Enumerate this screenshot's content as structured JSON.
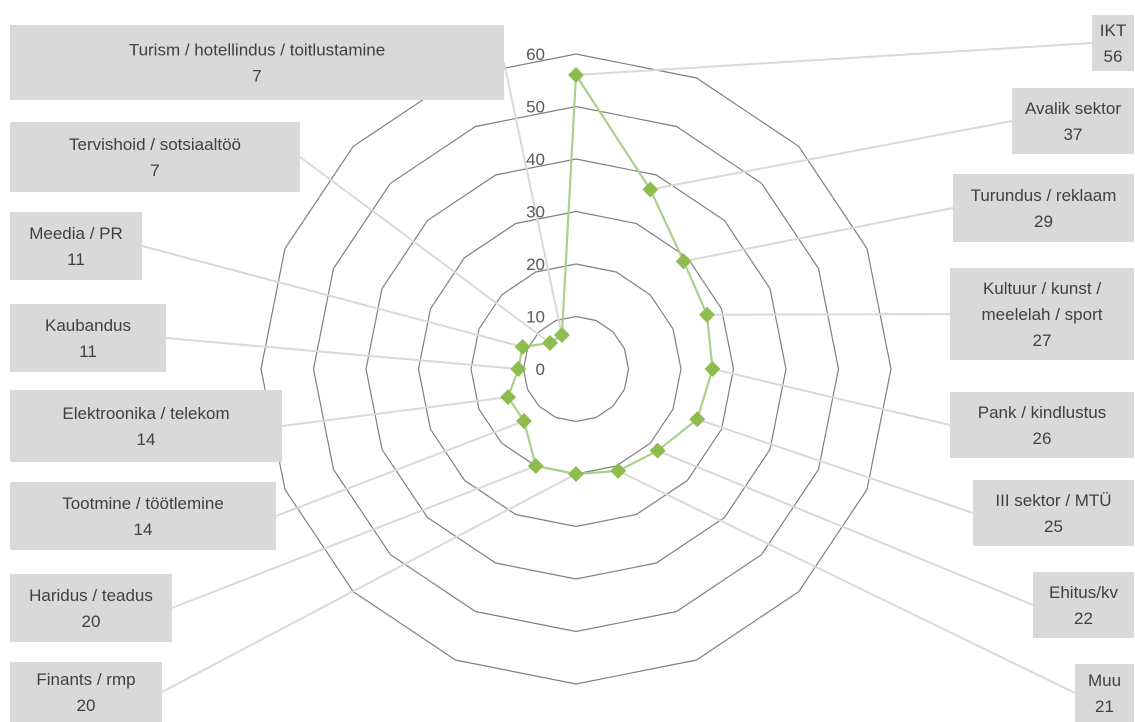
{
  "colors": {
    "series": "#8fbc4f",
    "series_line": "#a9d08e",
    "grid": "#808080",
    "callout_fill": "#d9d9d9",
    "leader": "#d9d9d9",
    "tick_text": "#595959",
    "label_text": "#404040"
  },
  "chart_data": {
    "type": "radar",
    "title": "",
    "rlim": [
      0,
      60
    ],
    "ticks": [
      "0",
      "10",
      "20",
      "30",
      "40",
      "50",
      "60"
    ],
    "tick_values": [
      0,
      10,
      20,
      30,
      40,
      50,
      60
    ],
    "grid": true,
    "marker": "diamond",
    "categories": [
      "IKT",
      "Avalik sektor",
      "Turundus / reklaam",
      "Kultuur / kunst / meelelah / sport",
      "Pank / kindlustus",
      "III sektor / MTÜ",
      "Ehitus/kv",
      "Muu",
      "Finants / rmp",
      "Haridus / teadus",
      "Tootmine / töötlemine",
      "Elektroonika / telekom",
      "Kaubandus",
      "Meedia / PR",
      "Tervishoid / sotsiaaltöö",
      "Turism / hotellindus / toitlustamine"
    ],
    "values": [
      56,
      37,
      29,
      27,
      26,
      25,
      22,
      21,
      20,
      20,
      14,
      14,
      11,
      11,
      7,
      7
    ],
    "labels": [
      {
        "lines": [
          "IKT"
        ],
        "value": "56",
        "side": "right"
      },
      {
        "lines": [
          "Avalik sektor"
        ],
        "value": "37",
        "side": "right"
      },
      {
        "lines": [
          "Turundus / reklaam"
        ],
        "value": "29",
        "side": "right"
      },
      {
        "lines": [
          "Kultuur / kunst /",
          "meelelah / sport"
        ],
        "value": "27",
        "side": "right"
      },
      {
        "lines": [
          "Pank / kindlustus"
        ],
        "value": "26",
        "side": "right"
      },
      {
        "lines": [
          "III sektor / MTÜ"
        ],
        "value": "25",
        "side": "right"
      },
      {
        "lines": [
          "Ehitus/kv"
        ],
        "value": "22",
        "side": "right"
      },
      {
        "lines": [
          "Muu"
        ],
        "value": "21",
        "side": "right"
      },
      {
        "lines": [
          "Finants / rmp"
        ],
        "value": "20",
        "side": "left"
      },
      {
        "lines": [
          "Haridus / teadus"
        ],
        "value": "20",
        "side": "left"
      },
      {
        "lines": [
          "Tootmine / töötlemine"
        ],
        "value": "14",
        "side": "left"
      },
      {
        "lines": [
          "Elektroonika / telekom"
        ],
        "value": "14",
        "side": "left"
      },
      {
        "lines": [
          "Kaubandus"
        ],
        "value": "11",
        "side": "left"
      },
      {
        "lines": [
          "Meedia / PR"
        ],
        "value": "11",
        "side": "left"
      },
      {
        "lines": [
          "Tervishoid / sotsiaaltöö"
        ],
        "value": "7",
        "side": "left"
      },
      {
        "lines": [
          "Turism / hotellindus / toitlustamine"
        ],
        "value": "7",
        "side": "left"
      }
    ]
  }
}
